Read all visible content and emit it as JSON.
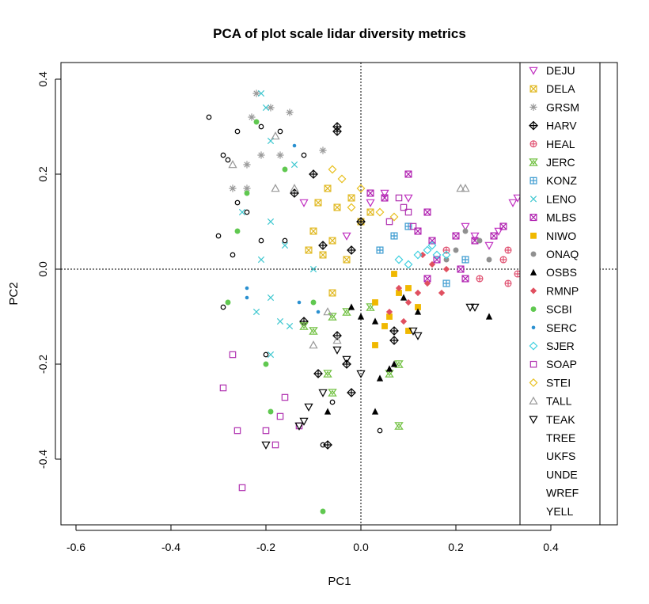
{
  "chart_data": {
    "type": "scatter",
    "title": "PCA of plot scale lidar diversity metrics",
    "xlabel": "PC1",
    "ylabel": "PC2",
    "xlim": [
      -0.6,
      0.5
    ],
    "ylim": [
      -0.55,
      0.42
    ],
    "x_ticks": [
      "-0.6",
      "-0.4",
      "-0.2",
      "0.0",
      "0.2",
      "0.4"
    ],
    "y_ticks": [
      "-0.4",
      "-0.2",
      "0.0",
      "0.2",
      "0.4"
    ],
    "reference_lines": {
      "x": 0,
      "y": 0,
      "style": "dotted"
    },
    "legend_placement": "right, inside plot",
    "series": [
      {
        "name": "DEJU",
        "marker": "triangle-down",
        "color": "#c030c0",
        "points": [
          [
            0.32,
            0.14
          ],
          [
            0.33,
            0.15
          ],
          [
            0.27,
            0.05
          ],
          [
            0.24,
            0.07
          ],
          [
            0.1,
            0.15
          ],
          [
            -0.03,
            0.07
          ],
          [
            0.05,
            0.16
          ],
          [
            0.02,
            0.14
          ],
          [
            -0.12,
            0.14
          ],
          [
            0.29,
            0.08
          ],
          [
            0.22,
            0.09
          ]
        ]
      },
      {
        "name": "DELA",
        "marker": "square-x",
        "color": "#e0b820",
        "points": [
          [
            -0.07,
            0.17
          ],
          [
            -0.05,
            0.13
          ],
          [
            -0.02,
            0.15
          ],
          [
            0.0,
            0.1
          ],
          [
            -0.1,
            0.08
          ],
          [
            -0.08,
            0.03
          ],
          [
            -0.06,
            0.06
          ],
          [
            -0.03,
            0.02
          ],
          [
            -0.11,
            0.04
          ],
          [
            -0.06,
            -0.05
          ],
          [
            0.02,
            0.12
          ],
          [
            -0.09,
            0.14
          ]
        ]
      },
      {
        "name": "GRSM",
        "marker": "asterisk",
        "color": "#999999",
        "points": [
          [
            -0.22,
            0.37
          ],
          [
            -0.23,
            0.32
          ],
          [
            -0.19,
            0.34
          ],
          [
            -0.15,
            0.33
          ],
          [
            -0.24,
            0.22
          ],
          [
            -0.27,
            0.17
          ],
          [
            -0.21,
            0.24
          ],
          [
            -0.17,
            0.24
          ],
          [
            -0.24,
            0.17
          ],
          [
            -0.08,
            0.25
          ]
        ]
      },
      {
        "name": "HARV",
        "marker": "diamond-plus",
        "color": "#000000",
        "points": [
          [
            -0.05,
            0.3
          ],
          [
            -0.05,
            0.29
          ],
          [
            -0.1,
            0.2
          ],
          [
            -0.14,
            0.16
          ],
          [
            -0.08,
            0.05
          ],
          [
            -0.02,
            0.04
          ],
          [
            0.0,
            0.1
          ],
          [
            -0.12,
            -0.11
          ],
          [
            -0.05,
            -0.14
          ],
          [
            -0.03,
            -0.2
          ],
          [
            -0.09,
            -0.22
          ],
          [
            -0.02,
            -0.26
          ],
          [
            0.07,
            -0.15
          ],
          [
            0.07,
            -0.13
          ],
          [
            -0.07,
            -0.37
          ]
        ]
      },
      {
        "name": "HEAL",
        "marker": "circle-plus",
        "color": "#e05070",
        "points": [
          [
            0.31,
            0.04
          ],
          [
            0.3,
            0.02
          ],
          [
            0.33,
            -0.01
          ],
          [
            0.31,
            -0.03
          ],
          [
            0.25,
            -0.02
          ],
          [
            0.18,
            0.04
          ],
          [
            0.36,
            -0.03
          ]
        ]
      },
      {
        "name": "JERC",
        "marker": "hourglass",
        "color": "#70c040",
        "points": [
          [
            -0.1,
            -0.13
          ],
          [
            -0.12,
            -0.12
          ],
          [
            -0.06,
            -0.1
          ],
          [
            -0.03,
            -0.09
          ],
          [
            0.02,
            -0.08
          ],
          [
            -0.07,
            -0.22
          ],
          [
            0.06,
            -0.22
          ],
          [
            0.08,
            -0.2
          ],
          [
            0.08,
            -0.33
          ],
          [
            -0.06,
            -0.26
          ]
        ]
      },
      {
        "name": "KONZ",
        "marker": "square-plus",
        "color": "#3a9ad0",
        "points": [
          [
            0.1,
            0.09
          ],
          [
            0.07,
            0.07
          ],
          [
            0.04,
            0.04
          ],
          [
            0.22,
            0.02
          ],
          [
            0.18,
            -0.03
          ]
        ]
      },
      {
        "name": "LENO",
        "marker": "x-cross",
        "color": "#40c8d0",
        "points": [
          [
            -0.21,
            0.37
          ],
          [
            -0.2,
            0.34
          ],
          [
            -0.19,
            0.27
          ],
          [
            -0.14,
            0.22
          ],
          [
            -0.25,
            0.12
          ],
          [
            -0.19,
            0.1
          ],
          [
            -0.16,
            0.05
          ],
          [
            -0.21,
            0.02
          ],
          [
            -0.1,
            0.0
          ],
          [
            -0.19,
            -0.06
          ],
          [
            -0.22,
            -0.09
          ],
          [
            -0.17,
            -0.11
          ],
          [
            -0.19,
            -0.18
          ],
          [
            -0.15,
            -0.12
          ]
        ]
      },
      {
        "name": "MLBS",
        "marker": "square-cross",
        "color": "#b020b0",
        "points": [
          [
            0.1,
            0.2
          ],
          [
            0.12,
            0.08
          ],
          [
            0.15,
            0.06
          ],
          [
            0.2,
            0.07
          ],
          [
            0.24,
            0.06
          ],
          [
            0.21,
            0.0
          ],
          [
            0.22,
            -0.02
          ],
          [
            0.28,
            0.07
          ],
          [
            0.3,
            0.09
          ],
          [
            0.16,
            0.02
          ],
          [
            0.14,
            -0.02
          ],
          [
            0.02,
            0.16
          ],
          [
            0.05,
            0.15
          ],
          [
            0.14,
            0.12
          ]
        ]
      },
      {
        "name": "NIWO",
        "marker": "filled-square",
        "color": "#f0b800",
        "points": [
          [
            0.03,
            -0.07
          ],
          [
            0.06,
            -0.1
          ],
          [
            0.1,
            -0.13
          ],
          [
            0.03,
            -0.16
          ],
          [
            0.08,
            -0.05
          ],
          [
            0.12,
            -0.08
          ],
          [
            0.07,
            -0.01
          ],
          [
            0.1,
            -0.04
          ],
          [
            0.05,
            -0.12
          ]
        ]
      },
      {
        "name": "ONAQ",
        "marker": "filled-circle",
        "color": "#909090",
        "points": [
          [
            0.2,
            0.04
          ],
          [
            0.22,
            0.08
          ],
          [
            0.25,
            0.06
          ],
          [
            0.18,
            0.02
          ],
          [
            0.27,
            0.02
          ]
        ]
      },
      {
        "name": "OSBS",
        "marker": "filled-triangle",
        "color": "#000000",
        "points": [
          [
            0.0,
            -0.1
          ],
          [
            0.03,
            -0.11
          ],
          [
            -0.02,
            -0.08
          ],
          [
            0.04,
            -0.23
          ],
          [
            0.06,
            -0.21
          ],
          [
            0.07,
            -0.2
          ],
          [
            0.03,
            -0.3
          ],
          [
            -0.07,
            -0.3
          ],
          [
            0.09,
            -0.06
          ],
          [
            0.12,
            -0.09
          ],
          [
            0.27,
            -0.1
          ]
        ]
      },
      {
        "name": "RMNP",
        "marker": "filled-diamond",
        "color": "#e05060",
        "points": [
          [
            0.12,
            -0.05
          ],
          [
            0.1,
            -0.07
          ],
          [
            0.08,
            -0.04
          ],
          [
            0.15,
            0.01
          ],
          [
            0.18,
            0.0
          ],
          [
            0.13,
            0.03
          ],
          [
            0.06,
            -0.09
          ],
          [
            0.09,
            -0.11
          ],
          [
            0.14,
            -0.03
          ],
          [
            0.17,
            -0.05
          ]
        ]
      },
      {
        "name": "SCBI",
        "marker": "filled-circle",
        "color": "#60c850",
        "points": [
          [
            -0.22,
            0.31
          ],
          [
            -0.16,
            0.21
          ],
          [
            -0.26,
            0.08
          ],
          [
            -0.28,
            -0.07
          ],
          [
            -0.2,
            -0.2
          ],
          [
            -0.19,
            -0.3
          ],
          [
            -0.08,
            -0.51
          ],
          [
            -0.1,
            -0.07
          ],
          [
            0.34,
            0.04
          ],
          [
            0.35,
            0.02
          ],
          [
            -0.24,
            0.16
          ]
        ]
      },
      {
        "name": "SERC",
        "marker": "small-dot",
        "color": "#2a90d0",
        "points": [
          [
            -0.14,
            0.26
          ],
          [
            -0.24,
            -0.04
          ],
          [
            -0.24,
            -0.06
          ],
          [
            -0.13,
            -0.07
          ],
          [
            -0.09,
            -0.09
          ]
        ]
      },
      {
        "name": "SJER",
        "marker": "diamond-open",
        "color": "#40d0e0",
        "points": [
          [
            0.12,
            0.03
          ],
          [
            0.14,
            0.04
          ],
          [
            0.16,
            0.03
          ],
          [
            0.15,
            0.05
          ],
          [
            0.1,
            0.01
          ],
          [
            0.18,
            0.03
          ],
          [
            0.08,
            0.02
          ]
        ]
      },
      {
        "name": "SOAP",
        "marker": "square-open",
        "color": "#b030b0",
        "points": [
          [
            -0.27,
            -0.18
          ],
          [
            -0.29,
            -0.25
          ],
          [
            -0.26,
            -0.34
          ],
          [
            -0.25,
            -0.46
          ],
          [
            -0.2,
            -0.34
          ],
          [
            -0.17,
            -0.31
          ],
          [
            -0.16,
            -0.27
          ],
          [
            -0.13,
            -0.33
          ],
          [
            -0.18,
            -0.37
          ],
          [
            0.08,
            0.15
          ],
          [
            0.09,
            0.13
          ],
          [
            0.1,
            0.12
          ],
          [
            0.11,
            0.09
          ],
          [
            0.06,
            0.1
          ]
        ]
      },
      {
        "name": "STEI",
        "marker": "diamond-open",
        "color": "#e8c020",
        "points": [
          [
            -0.06,
            0.21
          ],
          [
            -0.04,
            0.19
          ],
          [
            0.0,
            0.17
          ],
          [
            -0.02,
            0.13
          ],
          [
            0.04,
            0.12
          ],
          [
            0.07,
            0.11
          ]
        ]
      },
      {
        "name": "TALL",
        "marker": "triangle-open",
        "color": "#999999",
        "points": [
          [
            -0.27,
            0.22
          ],
          [
            -0.18,
            0.17
          ],
          [
            -0.14,
            0.17
          ],
          [
            -0.18,
            0.28
          ],
          [
            0.21,
            0.17
          ],
          [
            0.22,
            0.17
          ],
          [
            -0.1,
            -0.16
          ],
          [
            -0.05,
            -0.15
          ],
          [
            -0.07,
            -0.09
          ]
        ]
      },
      {
        "name": "TEAK",
        "marker": "triangle-down",
        "color": "#000000",
        "points": [
          [
            -0.2,
            -0.37
          ],
          [
            -0.12,
            -0.32
          ],
          [
            -0.13,
            -0.33
          ],
          [
            -0.11,
            -0.29
          ],
          [
            -0.08,
            -0.26
          ],
          [
            -0.05,
            -0.17
          ],
          [
            0.12,
            -0.14
          ],
          [
            0.11,
            -0.13
          ],
          [
            0.23,
            -0.08
          ],
          [
            0.24,
            -0.08
          ],
          [
            0.0,
            -0.22
          ],
          [
            -0.03,
            -0.19
          ]
        ]
      },
      {
        "name": "TREE",
        "marker": "none",
        "color": "#000000",
        "points": []
      },
      {
        "name": "UKFS",
        "marker": "none",
        "color": "#000000",
        "points": []
      },
      {
        "name": "UNDE",
        "marker": "none",
        "color": "#000000",
        "points": []
      },
      {
        "name": "WREF",
        "marker": "none",
        "color": "#000000",
        "points": []
      },
      {
        "name": "YELL",
        "marker": "none",
        "color": "#000000",
        "points": []
      }
    ],
    "unlabeled_points": [
      [
        -0.32,
        0.32
      ],
      [
        -0.29,
        0.24
      ],
      [
        -0.28,
        0.23
      ],
      [
        -0.26,
        0.29
      ],
      [
        -0.26,
        0.14
      ],
      [
        -0.24,
        0.12
      ],
      [
        -0.21,
        0.3
      ],
      [
        -0.17,
        0.29
      ],
      [
        -0.12,
        0.24
      ],
      [
        -0.2,
        -0.18
      ],
      [
        -0.27,
        0.03
      ],
      [
        -0.3,
        0.07
      ],
      [
        -0.29,
        -0.08
      ],
      [
        -0.08,
        -0.37
      ],
      [
        -0.06,
        -0.28
      ],
      [
        0.04,
        -0.34
      ],
      [
        -0.16,
        0.06
      ],
      [
        -0.21,
        0.06
      ]
    ]
  }
}
